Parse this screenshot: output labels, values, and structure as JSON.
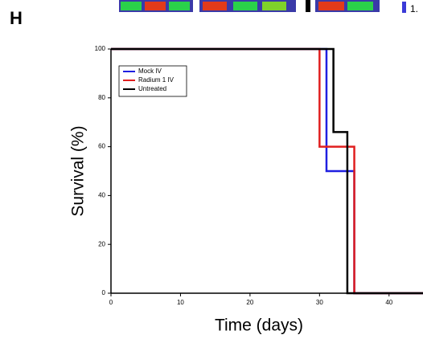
{
  "panel_label": "H",
  "fragment_text": "1.",
  "chart_data": {
    "type": "step",
    "xlabel": "Time (days)",
    "ylabel": "Survival (%)",
    "xlim": [
      0,
      45
    ],
    "xticks": [
      0,
      10,
      20,
      30,
      40
    ],
    "ylim": [
      0,
      100
    ],
    "yticks": [
      0,
      20,
      40,
      60,
      80,
      100
    ],
    "legend": "upper left",
    "series": [
      {
        "name": "Mock IV",
        "color": "#1f1fe0",
        "x": [
          0,
          31,
          35
        ],
        "values": [
          100,
          50,
          0
        ]
      },
      {
        "name": "Radium 1 IV",
        "color": "#e01f1f",
        "x": [
          0,
          30,
          35
        ],
        "values": [
          100,
          60,
          0
        ]
      },
      {
        "name": "Untreated",
        "color": "#000000",
        "x": [
          0,
          32,
          34
        ],
        "values": [
          100,
          66,
          0
        ]
      }
    ]
  }
}
